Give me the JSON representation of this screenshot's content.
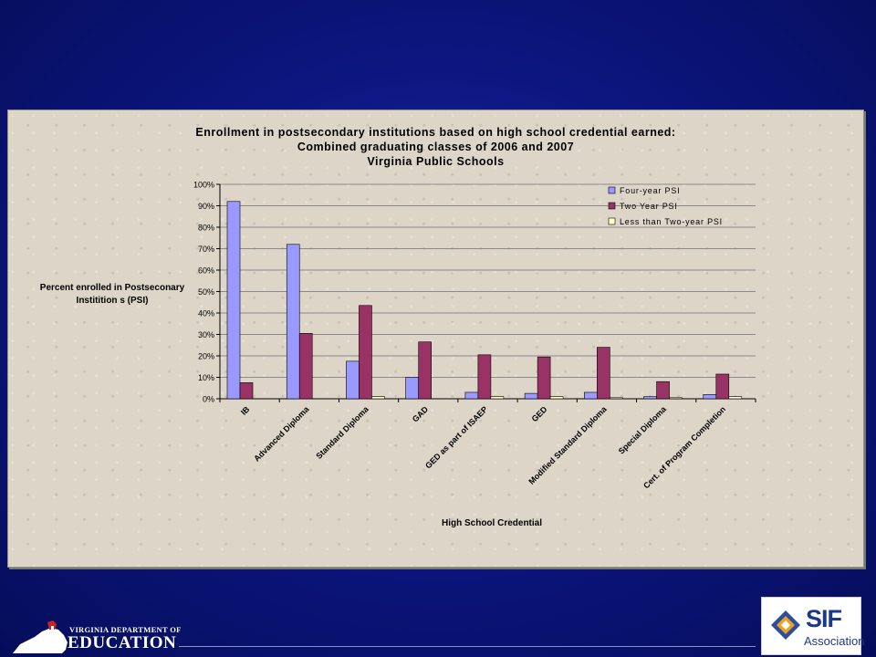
{
  "chart_data": {
    "type": "bar",
    "title_lines": [
      "Enrollment in postsecondary institutions based on high school credential earned:",
      "Combined graduating classes of 2006 and 2007",
      "Virginia Public Schools"
    ],
    "ylabel_lines": [
      "Percent enrolled in Postseconary",
      "Institition s (PSI)"
    ],
    "xlabel": "High School Credential",
    "ylim": [
      0,
      100
    ],
    "yticks": [
      "0%",
      "10%",
      "20%",
      "30%",
      "40%",
      "50%",
      "60%",
      "70%",
      "80%",
      "90%",
      "100%"
    ],
    "grid": true,
    "legend_position": "top-right",
    "categories": [
      "IB",
      "Advanced Diploma",
      "Standard Diploma",
      "GAD",
      "GED as part of ISAEP",
      "GED",
      "Modified Standard Diploma",
      "Special Diploma",
      "Cert. of Program Completion"
    ],
    "series": [
      {
        "name": "Four-year PSI",
        "color": "#9999ff",
        "values": [
          92,
          72,
          17.5,
          10,
          3,
          2.5,
          3,
          1,
          2
        ]
      },
      {
        "name": "Two Year PSI",
        "color": "#993366",
        "values": [
          7.5,
          30.5,
          43.5,
          26.5,
          20.5,
          19.5,
          24,
          8,
          11.5
        ]
      },
      {
        "name": "Less than Two-year PSI",
        "color": "#ffffcc",
        "values": [
          0,
          0,
          1,
          0,
          1,
          1,
          0.5,
          0.5,
          1
        ]
      }
    ]
  },
  "footer": {
    "vdoe_small": "VIRGINIA DEPARTMENT OF",
    "vdoe_big": "EDUCATION",
    "sif_name": "SIF",
    "sif_sub": "Association"
  }
}
